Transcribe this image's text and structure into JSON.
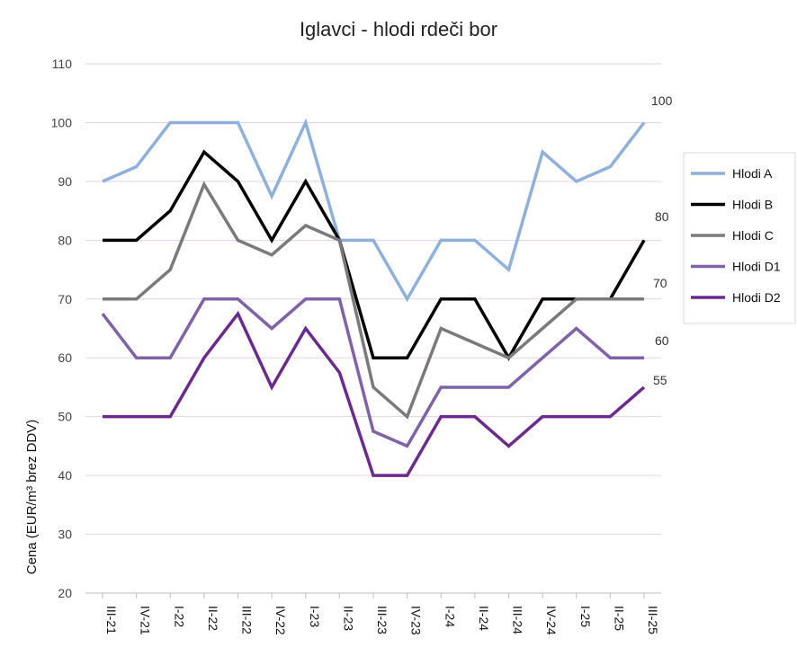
{
  "chart_data": {
    "type": "line",
    "title": "Iglavci - hlodi rdeči bor",
    "ylabel": "Cena (EUR/m³ brez DDV)",
    "xlabel": "",
    "ylim": [
      20,
      110
    ],
    "yticks": [
      20,
      30,
      40,
      50,
      60,
      70,
      80,
      90,
      100,
      110
    ],
    "grid": true,
    "legend_position": "right",
    "categories": [
      "III-21",
      "IV-21",
      "I-22",
      "II-22",
      "III-22",
      "IV-22",
      "I-23",
      "II-23",
      "III-23",
      "IV-23",
      "I-24",
      "II-24",
      "III-24",
      "IV-24",
      "I-25",
      "II-25",
      "III-25"
    ],
    "series": [
      {
        "name": "Hlodi A",
        "color": "#8fb0dc",
        "values": [
          90,
          92.5,
          100,
          100,
          100,
          87.5,
          100,
          80,
          80,
          70,
          80,
          80,
          75,
          95,
          90,
          92.5,
          100
        ]
      },
      {
        "name": "Hlodi B",
        "color": "#000000",
        "values": [
          80,
          80,
          85,
          95,
          90,
          80,
          90,
          80,
          60,
          60,
          70,
          70,
          60,
          70,
          70,
          70,
          80
        ]
      },
      {
        "name": "Hlodi C",
        "color": "#7a7a7a",
        "values": [
          70,
          70,
          75,
          89.5,
          80,
          77.5,
          82.5,
          80,
          55,
          50,
          65,
          62.5,
          60,
          65,
          70,
          70,
          70
        ]
      },
      {
        "name": "Hlodi D1",
        "color": "#7f62a8",
        "values": [
          67.5,
          60,
          60,
          70,
          70,
          65,
          70,
          70,
          47.5,
          45,
          55,
          55,
          55,
          60,
          65,
          60,
          60
        ]
      },
      {
        "name": "Hlodi D2",
        "color": "#6a2a8e",
        "values": [
          50,
          50,
          50,
          60,
          67.5,
          55,
          65,
          57.5,
          40,
          40,
          50,
          50,
          45,
          50,
          50,
          50,
          55
        ]
      }
    ],
    "end_labels": [
      "100",
      "80",
      "70",
      "60",
      "55"
    ]
  }
}
